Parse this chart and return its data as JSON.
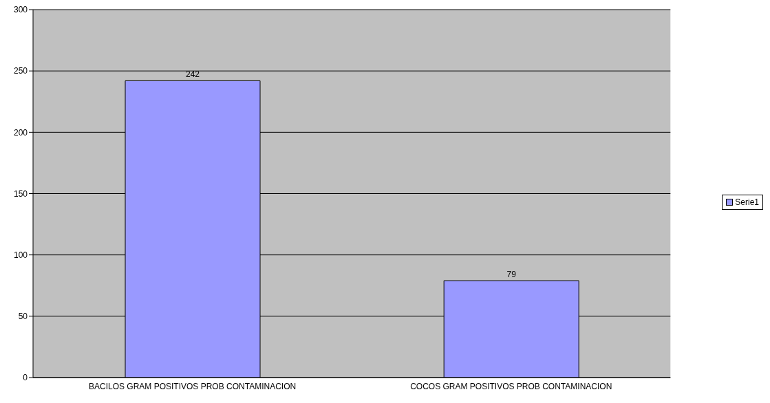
{
  "chart_data": {
    "type": "bar",
    "categories": [
      "BACILOS GRAM POSITIVOS PROB CONTAMINACION",
      "COCOS GRAM POSITIVOS PROB CONTAMINACION"
    ],
    "series": [
      {
        "name": "Serie1",
        "color": "#9999ff",
        "values": [
          242,
          79
        ]
      }
    ],
    "ylim": [
      0,
      300
    ],
    "yticks": [
      0,
      50,
      100,
      150,
      200,
      250,
      300
    ],
    "grid": "y",
    "legend": "right",
    "data_labels": true
  }
}
